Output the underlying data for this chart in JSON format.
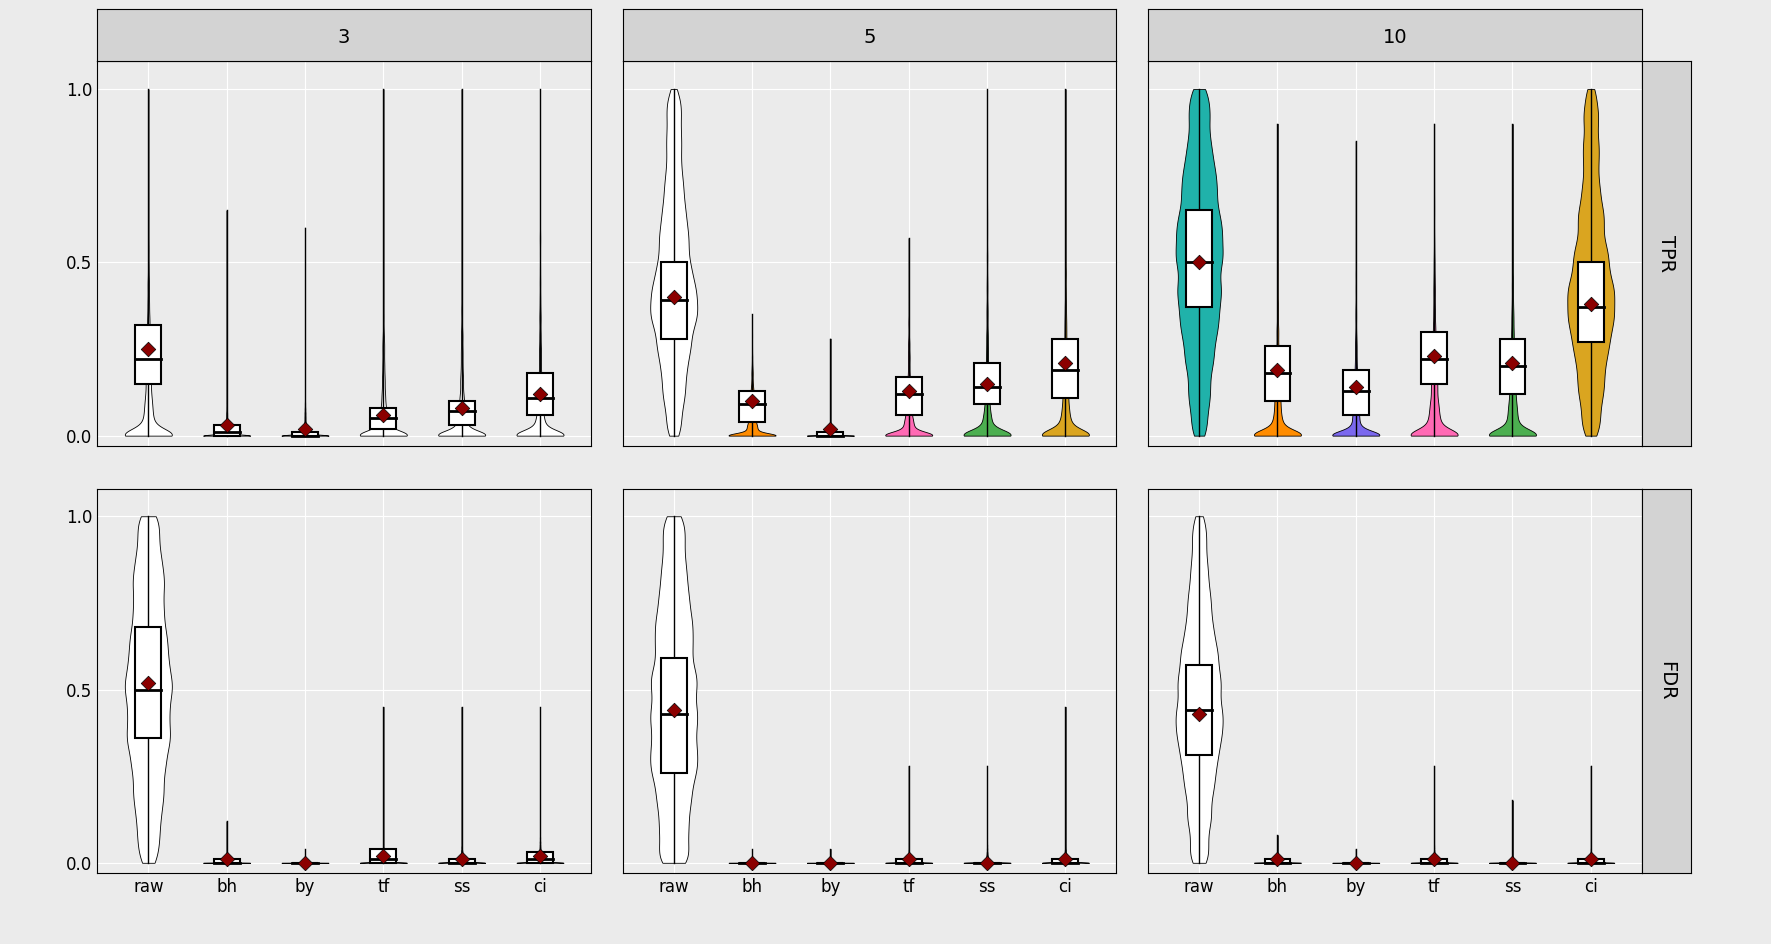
{
  "fold_changes": [
    "3",
    "5",
    "10"
  ],
  "procedures": [
    "raw",
    "bh",
    "by",
    "tf",
    "ss",
    "ci"
  ],
  "row_labels": [
    "TPR",
    "FDR"
  ],
  "panel_bg": "#EBEBEB",
  "grid_color": "#FFFFFF",
  "strip_bg": "#D3D3D3",
  "tpr_data": {
    "3": {
      "raw": {
        "q1": 0.15,
        "median": 0.22,
        "q3": 0.32,
        "mean": 0.25,
        "wlo": 0.0,
        "whi": 1.0
      },
      "bh": {
        "q1": 0.0,
        "median": 0.01,
        "q3": 0.03,
        "mean": 0.03,
        "wlo": 0.0,
        "whi": 0.65
      },
      "by": {
        "q1": 0.0,
        "median": 0.0,
        "q3": 0.01,
        "mean": 0.02,
        "wlo": 0.0,
        "whi": 0.6
      },
      "tf": {
        "q1": 0.02,
        "median": 0.05,
        "q3": 0.08,
        "mean": 0.06,
        "wlo": 0.0,
        "whi": 1.0
      },
      "ss": {
        "q1": 0.03,
        "median": 0.07,
        "q3": 0.1,
        "mean": 0.08,
        "wlo": 0.0,
        "whi": 1.0
      },
      "ci": {
        "q1": 0.06,
        "median": 0.11,
        "q3": 0.18,
        "mean": 0.12,
        "wlo": 0.0,
        "whi": 1.0
      }
    },
    "5": {
      "raw": {
        "q1": 0.28,
        "median": 0.39,
        "q3": 0.5,
        "mean": 0.4,
        "wlo": 0.0,
        "whi": 1.0
      },
      "bh": {
        "q1": 0.04,
        "median": 0.09,
        "q3": 0.13,
        "mean": 0.1,
        "wlo": 0.0,
        "whi": 0.35
      },
      "by": {
        "q1": 0.0,
        "median": 0.0,
        "q3": 0.01,
        "mean": 0.02,
        "wlo": 0.0,
        "whi": 0.28
      },
      "tf": {
        "q1": 0.06,
        "median": 0.12,
        "q3": 0.17,
        "mean": 0.13,
        "wlo": 0.0,
        "whi": 0.57
      },
      "ss": {
        "q1": 0.09,
        "median": 0.14,
        "q3": 0.21,
        "mean": 0.15,
        "wlo": 0.0,
        "whi": 1.0
      },
      "ci": {
        "q1": 0.11,
        "median": 0.19,
        "q3": 0.28,
        "mean": 0.21,
        "wlo": 0.0,
        "whi": 1.0
      }
    },
    "10": {
      "raw": {
        "q1": 0.37,
        "median": 0.5,
        "q3": 0.65,
        "mean": 0.5,
        "wlo": 0.0,
        "whi": 1.0
      },
      "bh": {
        "q1": 0.1,
        "median": 0.18,
        "q3": 0.26,
        "mean": 0.19,
        "wlo": 0.0,
        "whi": 0.9
      },
      "by": {
        "q1": 0.06,
        "median": 0.13,
        "q3": 0.19,
        "mean": 0.14,
        "wlo": 0.0,
        "whi": 0.85
      },
      "tf": {
        "q1": 0.15,
        "median": 0.22,
        "q3": 0.3,
        "mean": 0.23,
        "wlo": 0.0,
        "whi": 0.9
      },
      "ss": {
        "q1": 0.12,
        "median": 0.2,
        "q3": 0.28,
        "mean": 0.21,
        "wlo": 0.0,
        "whi": 0.9
      },
      "ci": {
        "q1": 0.27,
        "median": 0.37,
        "q3": 0.5,
        "mean": 0.38,
        "wlo": 0.0,
        "whi": 1.0
      }
    }
  },
  "fdr_data": {
    "3": {
      "raw": {
        "q1": 0.36,
        "median": 0.5,
        "q3": 0.68,
        "mean": 0.52,
        "wlo": 0.0,
        "whi": 1.0
      },
      "bh": {
        "q1": 0.0,
        "median": 0.0,
        "q3": 0.01,
        "mean": 0.01,
        "wlo": 0.0,
        "whi": 0.12
      },
      "by": {
        "q1": 0.0,
        "median": 0.0,
        "q3": 0.0,
        "mean": 0.0,
        "wlo": 0.0,
        "whi": 0.04
      },
      "tf": {
        "q1": 0.0,
        "median": 0.01,
        "q3": 0.04,
        "mean": 0.02,
        "wlo": 0.0,
        "whi": 0.45
      },
      "ss": {
        "q1": 0.0,
        "median": 0.0,
        "q3": 0.01,
        "mean": 0.01,
        "wlo": 0.0,
        "whi": 0.45
      },
      "ci": {
        "q1": 0.0,
        "median": 0.01,
        "q3": 0.03,
        "mean": 0.02,
        "wlo": 0.0,
        "whi": 0.45
      }
    },
    "5": {
      "raw": {
        "q1": 0.26,
        "median": 0.43,
        "q3": 0.59,
        "mean": 0.44,
        "wlo": 0.0,
        "whi": 1.0
      },
      "bh": {
        "q1": 0.0,
        "median": 0.0,
        "q3": 0.0,
        "mean": 0.0,
        "wlo": 0.0,
        "whi": 0.04
      },
      "by": {
        "q1": 0.0,
        "median": 0.0,
        "q3": 0.0,
        "mean": 0.0,
        "wlo": 0.0,
        "whi": 0.04
      },
      "tf": {
        "q1": 0.0,
        "median": 0.0,
        "q3": 0.01,
        "mean": 0.01,
        "wlo": 0.0,
        "whi": 0.28
      },
      "ss": {
        "q1": 0.0,
        "median": 0.0,
        "q3": 0.0,
        "mean": 0.0,
        "wlo": 0.0,
        "whi": 0.28
      },
      "ci": {
        "q1": 0.0,
        "median": 0.0,
        "q3": 0.01,
        "mean": 0.01,
        "wlo": 0.0,
        "whi": 0.45
      }
    },
    "10": {
      "raw": {
        "q1": 0.31,
        "median": 0.44,
        "q3": 0.57,
        "mean": 0.43,
        "wlo": 0.0,
        "whi": 1.0
      },
      "bh": {
        "q1": 0.0,
        "median": 0.0,
        "q3": 0.01,
        "mean": 0.01,
        "wlo": 0.0,
        "whi": 0.08
      },
      "by": {
        "q1": 0.0,
        "median": 0.0,
        "q3": 0.0,
        "mean": 0.0,
        "wlo": 0.0,
        "whi": 0.04
      },
      "tf": {
        "q1": 0.0,
        "median": 0.0,
        "q3": 0.01,
        "mean": 0.01,
        "wlo": 0.0,
        "whi": 0.28
      },
      "ss": {
        "q1": 0.0,
        "median": 0.0,
        "q3": 0.0,
        "mean": 0.0,
        "wlo": 0.0,
        "whi": 0.18
      },
      "ci": {
        "q1": 0.0,
        "median": 0.0,
        "q3": 0.01,
        "mean": 0.01,
        "wlo": 0.0,
        "whi": 0.28
      }
    }
  },
  "violin_colors": {
    "tpr": {
      "3": {
        "raw": "white",
        "bh": "white",
        "by": "white",
        "tf": "white",
        "ss": "white",
        "ci": "white"
      },
      "5": {
        "raw": "white",
        "bh": "#FF8C00",
        "by": "white",
        "tf": "#FF69B4",
        "ss": "#4CAF50",
        "ci": "#DAA520"
      },
      "10": {
        "raw": "#20B2AA",
        "bh": "#FF8C00",
        "by": "#7B68EE",
        "tf": "#FF69B4",
        "ss": "#4CAF50",
        "ci": "#DAA520"
      }
    },
    "fdr": {
      "3": {
        "raw": "white",
        "bh": "white",
        "by": "white",
        "tf": "white",
        "ss": "white",
        "ci": "white"
      },
      "5": {
        "raw": "white",
        "bh": "white",
        "by": "white",
        "tf": "white",
        "ss": "white",
        "ci": "white"
      },
      "10": {
        "raw": "white",
        "bh": "white",
        "by": "white",
        "tf": "white",
        "ss": "white",
        "ci": "white"
      }
    }
  },
  "median_line_colors": {
    "tpr": {
      "3": {
        "raw": "black",
        "bh": "black",
        "by": "black",
        "tf": "black",
        "ss": "black",
        "ci": "black"
      },
      "5": {
        "raw": "black",
        "bh": "black",
        "by": "black",
        "tf": "#FF69B4",
        "ss": "#4CAF50",
        "ci": "black"
      },
      "10": {
        "raw": "black",
        "bh": "black",
        "by": "black",
        "tf": "black",
        "ss": "black",
        "ci": "black"
      }
    },
    "fdr": {
      "3": {
        "raw": "black",
        "bh": "black",
        "by": "black",
        "tf": "black",
        "ss": "black",
        "ci": "black"
      },
      "5": {
        "raw": "black",
        "bh": "black",
        "by": "black",
        "tf": "black",
        "ss": "black",
        "ci": "black"
      },
      "10": {
        "raw": "black",
        "bh": "black",
        "by": "black",
        "tf": "black",
        "ss": "black",
        "ci": "black"
      }
    }
  }
}
